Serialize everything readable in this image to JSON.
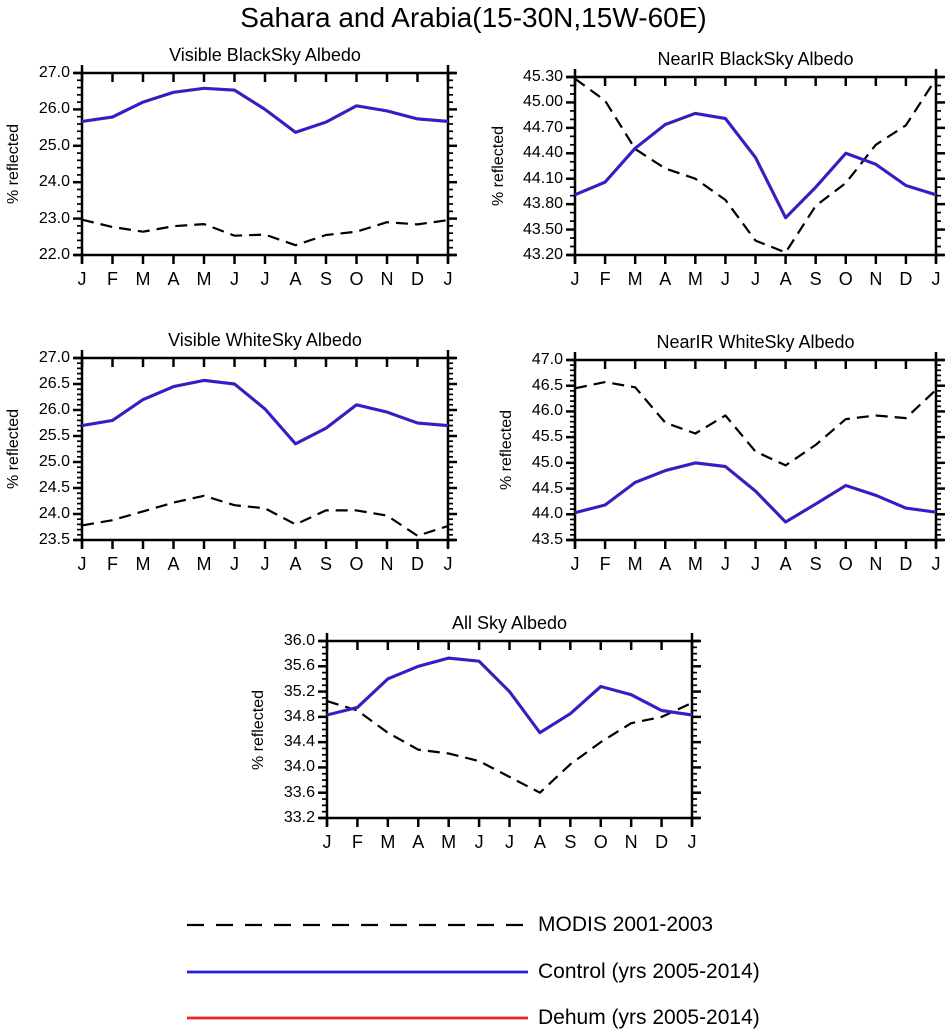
{
  "page_title": "Sahara and Arabia(15-30N,15W-60E)",
  "colors": {
    "modis": "#000000",
    "control": "#2222dd",
    "dehum": "#ee2222",
    "frame": "#000000"
  },
  "legend": [
    {
      "label": "MODIS 2001-2003",
      "color": "#000000",
      "style": "dashed"
    },
    {
      "label": "Control (yrs 2005-2014)",
      "color": "#2222dd",
      "style": "solid"
    },
    {
      "label": "Dehum (yrs 2005-2014)",
      "color": "#ee2222",
      "style": "solid"
    }
  ],
  "chart_data": [
    {
      "id": "visible-blacksky",
      "type": "line",
      "title": "Visible BlackSky Albedo",
      "ylabel": "% reflected",
      "x_labels": [
        "J",
        "F",
        "M",
        "A",
        "M",
        "J",
        "J",
        "A",
        "S",
        "O",
        "N",
        "D",
        "J"
      ],
      "ylim": [
        22.0,
        27.0
      ],
      "ytick_values": [
        22.0,
        23.0,
        24.0,
        25.0,
        26.0,
        27.0
      ],
      "ytick_labels": [
        "22.0",
        "23.0",
        "24.0",
        "25.0",
        "26.0",
        "27.0"
      ],
      "minor_step": 0.2,
      "series": [
        {
          "name": "MODIS 2001-2003",
          "color": "#000000",
          "dashed": true,
          "width": 2.2,
          "values": [
            22.97,
            22.77,
            22.64,
            22.79,
            22.85,
            22.53,
            22.56,
            22.27,
            22.55,
            22.64,
            22.9,
            22.84,
            22.96
          ]
        },
        {
          "name": "Dehum (yrs 2005-2014)",
          "color": "#ee2222",
          "dashed": false,
          "width": 3.2,
          "values": [
            25.67,
            25.79,
            26.2,
            26.47,
            26.58,
            26.53,
            26.0,
            25.37,
            25.65,
            26.1,
            25.96,
            25.74,
            25.67
          ]
        },
        {
          "name": "Control (yrs 2005-2014)",
          "color": "#2222dd",
          "dashed": false,
          "width": 2.7,
          "values": [
            25.67,
            25.79,
            26.2,
            26.47,
            26.58,
            26.53,
            26.0,
            25.37,
            25.65,
            26.1,
            25.96,
            25.74,
            25.67
          ]
        }
      ]
    },
    {
      "id": "nearir-blacksky",
      "type": "line",
      "title": "NearIR BlackSky Albedo",
      "ylabel": "% reflected",
      "x_labels": [
        "J",
        "F",
        "M",
        "A",
        "M",
        "J",
        "J",
        "A",
        "S",
        "O",
        "N",
        "D",
        "J"
      ],
      "ylim": [
        43.2,
        45.3
      ],
      "ytick_values": [
        43.2,
        43.5,
        43.8,
        44.1,
        44.4,
        44.7,
        45.0,
        45.3
      ],
      "ytick_labels": [
        "43.20",
        "43.50",
        "43.80",
        "44.10",
        "44.40",
        "44.70",
        "45.00",
        "45.30"
      ],
      "minor_step": 0.1,
      "series": [
        {
          "name": "MODIS 2001-2003",
          "color": "#000000",
          "dashed": true,
          "width": 2.2,
          "values": [
            45.28,
            45.02,
            44.45,
            44.22,
            44.1,
            43.85,
            43.37,
            43.23,
            43.78,
            44.05,
            44.5,
            44.73,
            45.28
          ]
        },
        {
          "name": "Dehum (yrs 2005-2014)",
          "color": "#ee2222",
          "dashed": false,
          "width": 3.2,
          "values": [
            43.91,
            44.06,
            44.46,
            44.74,
            44.87,
            44.81,
            44.35,
            43.64,
            44.0,
            44.4,
            44.27,
            44.02,
            43.91
          ]
        },
        {
          "name": "Control (yrs 2005-2014)",
          "color": "#2222dd",
          "dashed": false,
          "width": 2.7,
          "values": [
            43.91,
            44.06,
            44.46,
            44.74,
            44.87,
            44.81,
            44.35,
            43.64,
            44.0,
            44.4,
            44.27,
            44.02,
            43.91
          ]
        }
      ]
    },
    {
      "id": "visible-whitesky",
      "type": "line",
      "title": "Visible WhiteSky Albedo",
      "ylabel": "% reflected",
      "x_labels": [
        "J",
        "F",
        "M",
        "A",
        "M",
        "J",
        "J",
        "A",
        "S",
        "O",
        "N",
        "D",
        "J"
      ],
      "ylim": [
        23.5,
        27.0
      ],
      "ytick_values": [
        23.5,
        24.0,
        24.5,
        25.0,
        25.5,
        26.0,
        26.5,
        27.0
      ],
      "ytick_labels": [
        "23.5",
        "24.0",
        "24.5",
        "25.0",
        "25.5",
        "26.0",
        "26.5",
        "27.0"
      ],
      "minor_step": 0.1,
      "series": [
        {
          "name": "MODIS 2001-2003",
          "color": "#000000",
          "dashed": true,
          "width": 2.2,
          "values": [
            23.78,
            23.88,
            24.05,
            24.22,
            24.35,
            24.17,
            24.11,
            23.8,
            24.07,
            24.07,
            23.97,
            23.58,
            23.77
          ]
        },
        {
          "name": "Dehum (yrs 2005-2014)",
          "color": "#ee2222",
          "dashed": false,
          "width": 3.2,
          "values": [
            25.7,
            25.8,
            26.2,
            26.45,
            26.57,
            26.5,
            26.02,
            25.35,
            25.65,
            26.1,
            25.96,
            25.75,
            25.7
          ]
        },
        {
          "name": "Control (yrs 2005-2014)",
          "color": "#2222dd",
          "dashed": false,
          "width": 2.7,
          "values": [
            25.7,
            25.8,
            26.2,
            26.45,
            26.57,
            26.5,
            26.02,
            25.35,
            25.65,
            26.1,
            25.96,
            25.75,
            25.7
          ]
        }
      ]
    },
    {
      "id": "nearir-whitesky",
      "type": "line",
      "title": "NearIR WhiteSky Albedo",
      "ylabel": "% reflected",
      "x_labels": [
        "J",
        "F",
        "M",
        "A",
        "M",
        "J",
        "J",
        "A",
        "S",
        "O",
        "N",
        "D",
        "J"
      ],
      "ylim": [
        43.5,
        47.0
      ],
      "ytick_values": [
        43.5,
        44.0,
        44.5,
        45.0,
        45.5,
        46.0,
        46.5,
        47.0
      ],
      "ytick_labels": [
        "43.5",
        "44.0",
        "44.5",
        "45.0",
        "45.5",
        "46.0",
        "46.5",
        "47.0"
      ],
      "minor_step": 0.1,
      "series": [
        {
          "name": "MODIS 2001-2003",
          "color": "#000000",
          "dashed": true,
          "width": 2.2,
          "values": [
            46.45,
            46.57,
            46.47,
            45.78,
            45.57,
            45.92,
            45.22,
            44.95,
            45.35,
            45.85,
            45.92,
            45.87,
            46.42
          ]
        },
        {
          "name": "Dehum (yrs 2005-2014)",
          "color": "#ee2222",
          "dashed": false,
          "width": 3.2,
          "values": [
            44.03,
            44.18,
            44.62,
            44.85,
            45.0,
            44.93,
            44.45,
            43.85,
            44.2,
            44.56,
            44.37,
            44.12,
            44.04
          ]
        },
        {
          "name": "Control (yrs 2005-2014)",
          "color": "#2222dd",
          "dashed": false,
          "width": 2.7,
          "values": [
            44.03,
            44.18,
            44.62,
            44.85,
            45.0,
            44.93,
            44.45,
            43.85,
            44.2,
            44.56,
            44.37,
            44.12,
            44.04
          ]
        }
      ]
    },
    {
      "id": "allsky",
      "type": "line",
      "title": "All Sky Albedo",
      "ylabel": "% reflected",
      "x_labels": [
        "J",
        "F",
        "M",
        "A",
        "M",
        "J",
        "J",
        "A",
        "S",
        "O",
        "N",
        "D",
        "J"
      ],
      "ylim": [
        33.2,
        36.0
      ],
      "ytick_values": [
        33.2,
        33.6,
        34.0,
        34.4,
        34.8,
        35.2,
        35.6,
        36.0
      ],
      "ytick_labels": [
        "33.2",
        "33.6",
        "34.0",
        "34.4",
        "34.8",
        "35.2",
        "35.6",
        "36.0"
      ],
      "minor_step": 0.1,
      "series": [
        {
          "name": "MODIS 2001-2003",
          "color": "#000000",
          "dashed": true,
          "width": 2.2,
          "values": [
            35.05,
            34.9,
            34.55,
            34.28,
            34.22,
            34.1,
            33.85,
            33.6,
            34.05,
            34.4,
            34.7,
            34.8,
            35.02
          ]
        },
        {
          "name": "Dehum (yrs 2005-2014)",
          "color": "#ee2222",
          "dashed": false,
          "width": 3.2,
          "values": [
            34.83,
            34.95,
            35.4,
            35.6,
            35.73,
            35.68,
            35.2,
            34.55,
            34.85,
            35.28,
            35.15,
            34.9,
            34.83
          ]
        },
        {
          "name": "Control (yrs 2005-2014)",
          "color": "#2222dd",
          "dashed": false,
          "width": 2.7,
          "values": [
            34.83,
            34.95,
            35.4,
            35.6,
            35.73,
            35.68,
            35.2,
            34.55,
            34.85,
            35.28,
            35.15,
            34.9,
            34.83
          ]
        }
      ]
    }
  ]
}
